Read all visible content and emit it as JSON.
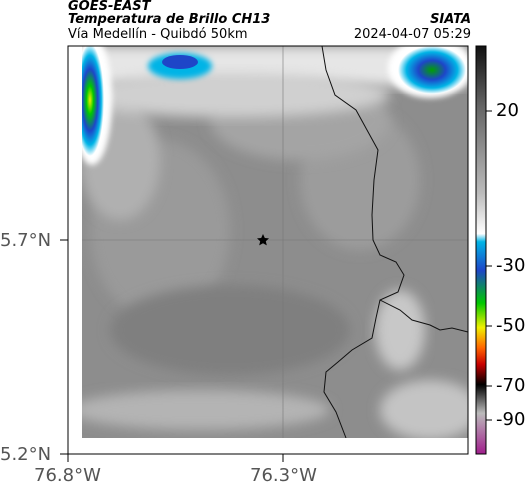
{
  "header": {
    "satellite": "GOES-EAST",
    "product": "Temperatura de Brillo CH13",
    "route": "Vía Medellín - Quibdó 50km",
    "agency": "SIATA",
    "datetime": "2024-04-07 05:29"
  },
  "axes": {
    "lat_ticks": [
      "5.7°N",
      "5.2°N"
    ],
    "lon_ticks": [
      "76.8°W",
      "76.3°W"
    ]
  },
  "colorbar": {
    "ticks": [
      "20",
      "-30",
      "-50",
      "-70",
      "-90"
    ],
    "colors": [
      "#111111",
      "#bbbbbb",
      "#ffffff",
      "#00b4e6",
      "#1e46c8",
      "#00c800",
      "#f0f000",
      "#ff6400",
      "#c80000",
      "#000000",
      "#bbbbbb",
      "#a01e8c"
    ]
  },
  "map": {
    "marker": "star-icon"
  }
}
